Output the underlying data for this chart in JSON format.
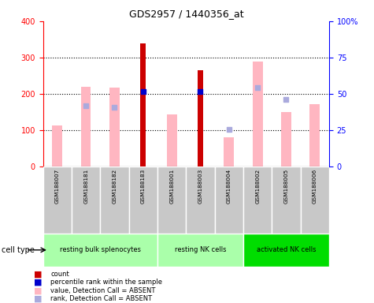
{
  "title": "GDS2957 / 1440356_at",
  "samples": [
    "GSM188007",
    "GSM188181",
    "GSM188182",
    "GSM188183",
    "GSM188001",
    "GSM188003",
    "GSM188004",
    "GSM188002",
    "GSM188005",
    "GSM188006"
  ],
  "red_bars": [
    null,
    null,
    null,
    340,
    null,
    265,
    null,
    null,
    null,
    null
  ],
  "blue_dots": [
    null,
    null,
    null,
    207,
    null,
    206,
    null,
    null,
    null,
    null
  ],
  "pink_bars": [
    113,
    220,
    218,
    null,
    143,
    null,
    80,
    290,
    151,
    172
  ],
  "lavender_dots": [
    null,
    168,
    163,
    null,
    null,
    null,
    102,
    218,
    185,
    null
  ],
  "ylim": [
    0,
    400
  ],
  "y_ticks": [
    0,
    100,
    200,
    300,
    400
  ],
  "y2_ticks": [
    0,
    25,
    50,
    75,
    100
  ],
  "y2_labels": [
    "0",
    "25",
    "50",
    "75",
    "100%"
  ],
  "red_color": "#CC0000",
  "pink_color": "#FFB6C1",
  "blue_color": "#0000CC",
  "lavender_color": "#AAAADD",
  "sample_bg_color": "#C8C8C8",
  "cell_type_label": "cell type",
  "groups": [
    {
      "label": "resting bulk splenocytes",
      "start": 0,
      "end": 3,
      "color": "#AAFFAA"
    },
    {
      "label": "resting NK cells",
      "start": 4,
      "end": 6,
      "color": "#AAFFAA"
    },
    {
      "label": "activated NK cells",
      "start": 7,
      "end": 9,
      "color": "#00DD00"
    }
  ]
}
